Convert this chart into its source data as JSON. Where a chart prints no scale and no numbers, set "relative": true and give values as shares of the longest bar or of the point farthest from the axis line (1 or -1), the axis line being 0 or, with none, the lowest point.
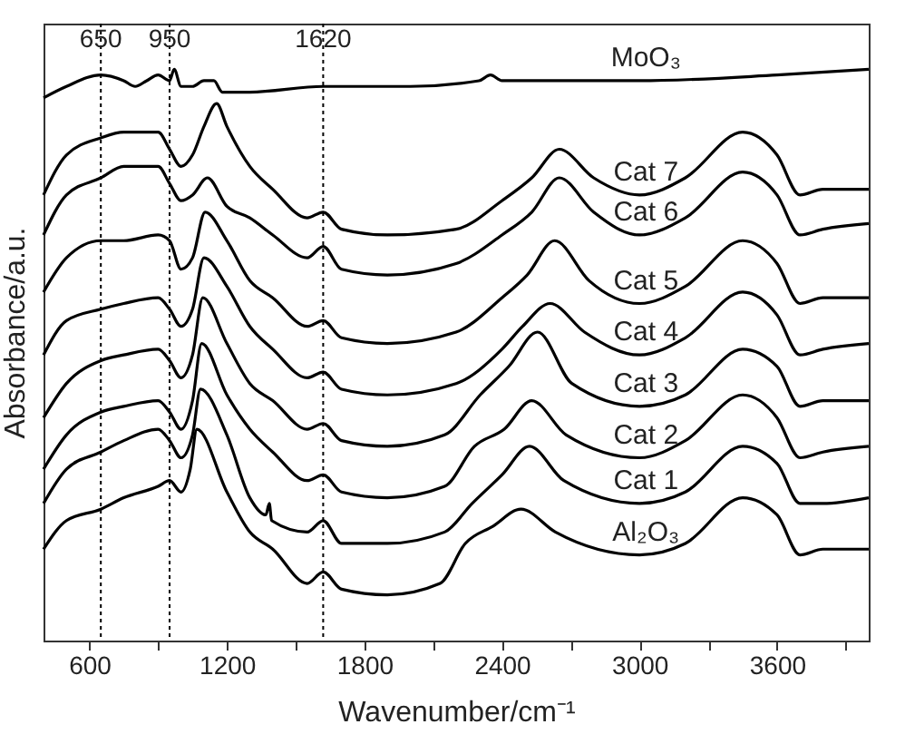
{
  "chart_data": {
    "type": "line",
    "relative": true,
    "xlabel": "Wavenumber/cm⁻¹",
    "ylabel": "Absorbance/a.u.",
    "xlim": [
      400,
      4000
    ],
    "xticks": [
      600,
      {
        "value": 900,
        "label": null
      },
      1200,
      {
        "value": 1500,
        "label": null
      },
      1800,
      {
        "value": 2100,
        "label": null
      },
      2400,
      {
        "value": 2700,
        "label": null
      },
      3000,
      {
        "value": 3300,
        "label": null
      },
      3600,
      {
        "value": 3900,
        "label": null
      }
    ],
    "line_style": "solid",
    "marker": "none",
    "ref_lines": [
      {
        "axis": "x",
        "value": 650,
        "label": "650",
        "line_style": "dotted",
        "color": "#000000"
      },
      {
        "axis": "x",
        "value": 950,
        "label": "950",
        "line_style": "dotted",
        "color": "#000000"
      },
      {
        "axis": "x",
        "value": 1620,
        "label": "1620",
        "line_style": "dotted",
        "color": "#000000"
      }
    ],
    "series": [
      {
        "name": "MoO₃",
        "color": "#000000",
        "x": [
          400,
          500,
          650,
          750,
          800,
          850,
          900,
          950,
          970,
          1000,
          1050,
          1100,
          1143,
          1180,
          1300,
          1620,
          2000,
          2300,
          2350,
          2400,
          3000,
          3600,
          4000
        ],
        "values": [
          0.95,
          0.97,
          0.99,
          0.98,
          0.97,
          0.98,
          0.99,
          0.98,
          1.0,
          0.97,
          0.97,
          0.98,
          0.98,
          0.96,
          0.96,
          0.97,
          0.97,
          0.98,
          0.99,
          0.98,
          0.98,
          0.99,
          1.0
        ]
      },
      {
        "name": "Cat 7",
        "color": "#000000",
        "x": [
          400,
          500,
          650,
          750,
          900,
          950,
          1000,
          1050,
          1100,
          1155,
          1200,
          1300,
          1400,
          1550,
          1620,
          1700,
          1900,
          2200,
          2400,
          2530,
          2650,
          2800,
          3000,
          3200,
          3450,
          3600,
          3700,
          3800,
          4000
        ],
        "values": [
          0.78,
          0.85,
          0.88,
          0.89,
          0.89,
          0.86,
          0.83,
          0.85,
          0.9,
          0.94,
          0.9,
          0.83,
          0.79,
          0.74,
          0.75,
          0.72,
          0.71,
          0.72,
          0.77,
          0.81,
          0.86,
          0.81,
          0.78,
          0.81,
          0.89,
          0.85,
          0.78,
          0.79,
          0.79
        ]
      },
      {
        "name": "Cat 6",
        "color": "#000000",
        "x": [
          400,
          500,
          650,
          750,
          900,
          950,
          1000,
          1050,
          1115,
          1200,
          1300,
          1400,
          1550,
          1620,
          1700,
          1900,
          2200,
          2400,
          2530,
          2650,
          2800,
          3000,
          3200,
          3450,
          3600,
          3700,
          3800,
          4000
        ],
        "values": [
          0.71,
          0.78,
          0.81,
          0.83,
          0.83,
          0.8,
          0.77,
          0.78,
          0.81,
          0.76,
          0.74,
          0.71,
          0.67,
          0.69,
          0.65,
          0.64,
          0.66,
          0.71,
          0.75,
          0.81,
          0.75,
          0.71,
          0.74,
          0.82,
          0.78,
          0.71,
          0.72,
          0.73
        ]
      },
      {
        "name": "Cat 5",
        "color": "#000000",
        "x": [
          400,
          500,
          650,
          750,
          900,
          950,
          1000,
          1050,
          1105,
          1200,
          1300,
          1400,
          1550,
          1620,
          1700,
          1900,
          2200,
          2400,
          2510,
          2630,
          2780,
          3000,
          3200,
          3450,
          3600,
          3700,
          3800,
          4000
        ],
        "values": [
          0.61,
          0.67,
          0.7,
          0.7,
          0.71,
          0.7,
          0.65,
          0.67,
          0.75,
          0.7,
          0.63,
          0.6,
          0.55,
          0.56,
          0.53,
          0.52,
          0.54,
          0.6,
          0.64,
          0.7,
          0.63,
          0.59,
          0.62,
          0.7,
          0.66,
          0.59,
          0.6,
          0.6
        ]
      },
      {
        "name": "Cat 4",
        "color": "#000000",
        "x": [
          400,
          500,
          650,
          750,
          900,
          950,
          1000,
          1050,
          1100,
          1200,
          1300,
          1400,
          1550,
          1620,
          1700,
          1900,
          2200,
          2400,
          2490,
          2610,
          2760,
          3000,
          3200,
          3450,
          3600,
          3700,
          3800,
          4000
        ],
        "values": [
          0.5,
          0.56,
          0.58,
          0.59,
          0.6,
          0.58,
          0.55,
          0.58,
          0.67,
          0.62,
          0.55,
          0.51,
          0.46,
          0.47,
          0.44,
          0.43,
          0.45,
          0.51,
          0.55,
          0.59,
          0.54,
          0.5,
          0.53,
          0.61,
          0.57,
          0.5,
          0.51,
          0.52
        ]
      },
      {
        "name": "Cat 3",
        "color": "#000000",
        "x": [
          400,
          500,
          650,
          750,
          900,
          950,
          1000,
          1050,
          1095,
          1200,
          1300,
          1400,
          1550,
          1620,
          1700,
          1900,
          2150,
          2305,
          2430,
          2555,
          2705,
          3000,
          3200,
          3450,
          3600,
          3700,
          3800,
          4000
        ],
        "values": [
          0.39,
          0.45,
          0.49,
          0.5,
          0.51,
          0.49,
          0.46,
          0.5,
          0.6,
          0.52,
          0.45,
          0.42,
          0.37,
          0.38,
          0.35,
          0.34,
          0.36,
          0.43,
          0.48,
          0.54,
          0.45,
          0.41,
          0.43,
          0.51,
          0.48,
          0.41,
          0.42,
          0.42
        ]
      },
      {
        "name": "Cat 2",
        "color": "#000000",
        "x": [
          400,
          500,
          650,
          750,
          900,
          950,
          1000,
          1050,
          1090,
          1200,
          1300,
          1400,
          1550,
          1620,
          1700,
          1900,
          2150,
          2280,
          2410,
          2530,
          2680,
          3000,
          3200,
          3450,
          3600,
          3700,
          3800,
          4000
        ],
        "values": [
          0.3,
          0.36,
          0.4,
          0.41,
          0.42,
          0.4,
          0.37,
          0.42,
          0.52,
          0.43,
          0.37,
          0.33,
          0.28,
          0.29,
          0.26,
          0.25,
          0.27,
          0.34,
          0.37,
          0.42,
          0.36,
          0.32,
          0.35,
          0.43,
          0.39,
          0.32,
          0.33,
          0.34
        ]
      },
      {
        "name": "Cat 1",
        "color": "#000000",
        "x": [
          400,
          500,
          650,
          750,
          900,
          950,
          1000,
          1050,
          1085,
          1200,
          1300,
          1370,
          1385,
          1395,
          1550,
          1620,
          1700,
          1900,
          2150,
          2270,
          2400,
          2520,
          2670,
          3000,
          3200,
          3450,
          3600,
          3700,
          3800,
          4000
        ],
        "values": [
          0.24,
          0.3,
          0.33,
          0.35,
          0.37,
          0.35,
          0.32,
          0.36,
          0.44,
          0.36,
          0.25,
          0.22,
          0.24,
          0.21,
          0.19,
          0.21,
          0.17,
          0.17,
          0.19,
          0.24,
          0.29,
          0.34,
          0.28,
          0.24,
          0.26,
          0.34,
          0.31,
          0.24,
          0.24,
          0.25
        ]
      },
      {
        "name": "Al₂O₃",
        "color": "#000000",
        "x": [
          400,
          500,
          650,
          750,
          900,
          950,
          1000,
          1040,
          1069,
          1200,
          1300,
          1400,
          1550,
          1620,
          1700,
          1900,
          2130,
          2240,
          2360,
          2483,
          2633,
          3000,
          3200,
          3450,
          3600,
          3700,
          3800,
          4000
        ],
        "values": [
          0.16,
          0.21,
          0.23,
          0.25,
          0.27,
          0.28,
          0.26,
          0.3,
          0.37,
          0.26,
          0.19,
          0.16,
          0.1,
          0.12,
          0.09,
          0.08,
          0.1,
          0.17,
          0.2,
          0.23,
          0.19,
          0.15,
          0.17,
          0.25,
          0.22,
          0.15,
          0.16,
          0.16
        ]
      }
    ]
  }
}
